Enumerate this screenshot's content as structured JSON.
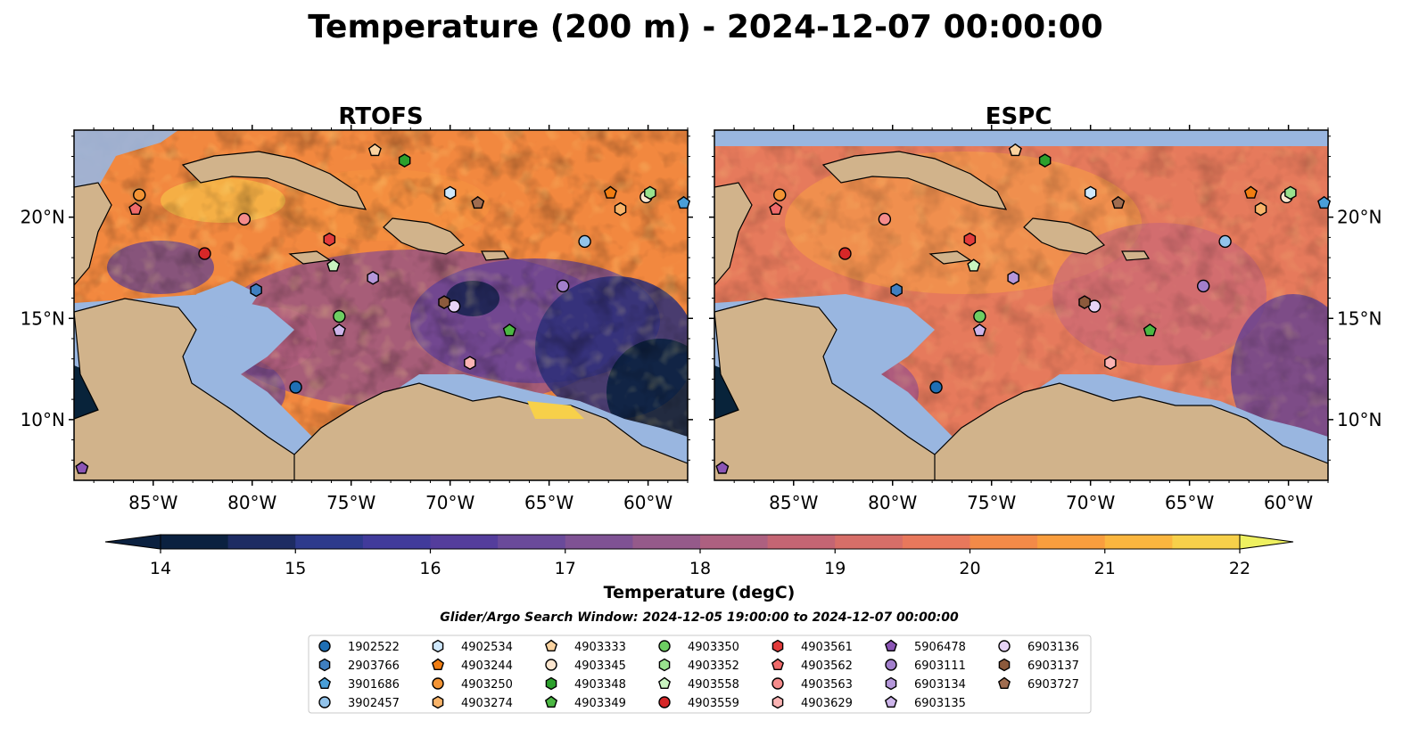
{
  "figure": {
    "title": "Temperature (200 m) - 2024-12-07 00:00:00",
    "search_window": "Glider/Argo Search Window: 2024-12-05 19:00:00 to 2024-12-07 00:00:00"
  },
  "panels": [
    {
      "id": "rtofs",
      "title": "RTOFS"
    },
    {
      "id": "espc",
      "title": "ESPC"
    }
  ],
  "axes": {
    "lon_ticks": [
      "85°W",
      "80°W",
      "75°W",
      "70°W",
      "65°W",
      "60°W"
    ],
    "lat_ticks": [
      "20°N",
      "15°N",
      "10°N"
    ]
  },
  "colorbar": {
    "label": "Temperature (degC)",
    "min": 14,
    "max": 22,
    "step": 0.5,
    "ticks": [
      "14",
      "15",
      "16",
      "17",
      "18",
      "19",
      "20",
      "21",
      "22"
    ],
    "colors": [
      "#0b2140",
      "#1d2c63",
      "#2d3a8c",
      "#413b9b",
      "#543d9c",
      "#6a4a9a",
      "#7f5294",
      "#955a8a",
      "#ad6080",
      "#c46573",
      "#d76e68",
      "#e8785c",
      "#f38a48",
      "#f99e3e",
      "#fbb63f",
      "#f7d04a",
      "#eef060"
    ]
  },
  "legend": {
    "items": [
      {
        "id": "1902522",
        "marker": "circle",
        "color": "#1f6fb4"
      },
      {
        "id": "2903766",
        "marker": "hexagon",
        "color": "#3f7fc0"
      },
      {
        "id": "3901686",
        "marker": "pentagon",
        "color": "#4a9fd8"
      },
      {
        "id": "3902457",
        "marker": "circle",
        "color": "#92c3ea"
      },
      {
        "id": "4902534",
        "marker": "hexagon",
        "color": "#cfe8fb"
      },
      {
        "id": "4903244",
        "marker": "pentagon",
        "color": "#f07d12"
      },
      {
        "id": "4903250",
        "marker": "circle",
        "color": "#f39435"
      },
      {
        "id": "4903274",
        "marker": "hexagon",
        "color": "#f8b46a"
      },
      {
        "id": "4903333",
        "marker": "pentagon",
        "color": "#fbd3a0"
      },
      {
        "id": "4903345",
        "marker": "circle",
        "color": "#fde6cf"
      },
      {
        "id": "4903348",
        "marker": "hexagon",
        "color": "#2ca02c"
      },
      {
        "id": "4903349",
        "marker": "pentagon",
        "color": "#4cb843"
      },
      {
        "id": "4903350",
        "marker": "circle",
        "color": "#6dce62"
      },
      {
        "id": "4903352",
        "marker": "hexagon",
        "color": "#99e28e"
      },
      {
        "id": "4903558",
        "marker": "pentagon",
        "color": "#c9f5c0"
      },
      {
        "id": "4903559",
        "marker": "circle",
        "color": "#d62728"
      },
      {
        "id": "4903561",
        "marker": "hexagon",
        "color": "#e23b3b"
      },
      {
        "id": "4903562",
        "marker": "pentagon",
        "color": "#ef6a6a"
      },
      {
        "id": "4903563",
        "marker": "circle",
        "color": "#f58c8c"
      },
      {
        "id": "4903629",
        "marker": "hexagon",
        "color": "#fbb4b4"
      },
      {
        "id": "5906478",
        "marker": "pentagon",
        "color": "#8b55b5"
      },
      {
        "id": "6903111",
        "marker": "circle",
        "color": "#a27fcc"
      },
      {
        "id": "6903134",
        "marker": "hexagon",
        "color": "#b597da"
      },
      {
        "id": "6903135",
        "marker": "pentagon",
        "color": "#cdb5ea"
      },
      {
        "id": "6903136",
        "marker": "circle",
        "color": "#e7d4f7"
      },
      {
        "id": "6903137",
        "marker": "hexagon",
        "color": "#8c5a3c"
      },
      {
        "id": "6903727",
        "marker": "pentagon",
        "color": "#a06d50"
      }
    ]
  },
  "platforms": [
    {
      "id": "1902522",
      "lon": -77.8,
      "lat": 11.6
    },
    {
      "id": "2903766",
      "lon": -79.8,
      "lat": 16.4
    },
    {
      "id": "3901686",
      "lon": -58.2,
      "lat": 20.7
    },
    {
      "id": "3902457",
      "lon": -63.2,
      "lat": 18.8
    },
    {
      "id": "4902534",
      "lon": -70.0,
      "lat": 21.2
    },
    {
      "id": "4903244",
      "lon": -61.9,
      "lat": 21.2
    },
    {
      "id": "4903250",
      "lon": -85.7,
      "lat": 21.1
    },
    {
      "id": "4903274",
      "lon": -61.4,
      "lat": 20.4
    },
    {
      "id": "4903333",
      "lon": -73.8,
      "lat": 23.3
    },
    {
      "id": "4903345",
      "lon": -60.1,
      "lat": 21.0
    },
    {
      "id": "4903348",
      "lon": -72.3,
      "lat": 22.8
    },
    {
      "id": "4903349",
      "lon": -67.0,
      "lat": 14.4
    },
    {
      "id": "4903350",
      "lon": -75.6,
      "lat": 15.1
    },
    {
      "id": "4903352",
      "lon": -59.9,
      "lat": 21.2
    },
    {
      "id": "4903558",
      "lon": -75.9,
      "lat": 17.6
    },
    {
      "id": "4903559",
      "lon": -82.4,
      "lat": 18.2
    },
    {
      "id": "4903561",
      "lon": -76.1,
      "lat": 18.9
    },
    {
      "id": "4903562",
      "lon": -85.9,
      "lat": 20.4
    },
    {
      "id": "4903563",
      "lon": -80.4,
      "lat": 19.9
    },
    {
      "id": "4903629",
      "lon": -69.0,
      "lat": 12.8
    },
    {
      "id": "5906478",
      "lon": -88.6,
      "lat": 7.6
    },
    {
      "id": "6903111",
      "lon": -64.3,
      "lat": 16.6
    },
    {
      "id": "6903134",
      "lon": -73.9,
      "lat": 17.0
    },
    {
      "id": "6903135",
      "lon": -75.6,
      "lat": 14.4
    },
    {
      "id": "6903136",
      "lon": -69.8,
      "lat": 15.6
    },
    {
      "id": "6903137",
      "lon": -70.3,
      "lat": 15.8
    },
    {
      "id": "6903727",
      "lon": -68.6,
      "lat": 20.7
    }
  ],
  "map_extent": {
    "lon_min": -89,
    "lon_max": -58,
    "lat_min": 7,
    "lat_max": 24.3
  },
  "colors": {
    "land": "#d1b38b",
    "shelf": "#99b6e0",
    "deep_low": "#08233a",
    "coast": "#000000"
  }
}
